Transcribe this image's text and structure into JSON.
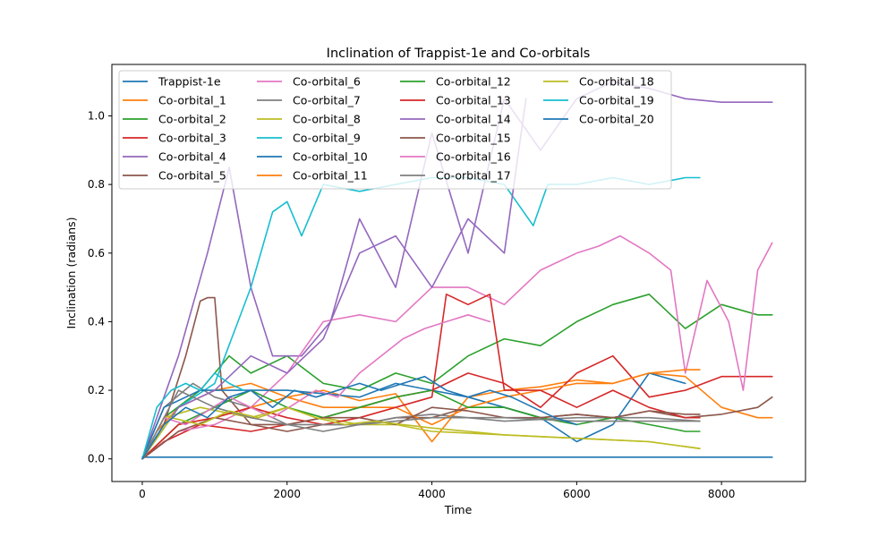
{
  "chart_data": {
    "type": "line",
    "title": "Inclination of Trappist-1e and Co-orbitals",
    "xlabel": "Time",
    "ylabel": "Inclination (radians)",
    "xlim": [
      -420,
      9160
    ],
    "ylim": [
      -0.066,
      1.15
    ],
    "xticks": [
      0,
      2000,
      4000,
      6000,
      8000
    ],
    "xtick_labels": [
      "0",
      "2000",
      "4000",
      "6000",
      "8000"
    ],
    "yticks": [
      0.0,
      0.2,
      0.4,
      0.6,
      0.8,
      1.0
    ],
    "ytick_labels": [
      "0.0",
      "0.2",
      "0.4",
      "0.6",
      "0.8",
      "1.0"
    ],
    "grid": false,
    "legend_position": "top-left",
    "legend_columns": 4,
    "series": [
      {
        "name": "Trappist-1e",
        "color": "#1f77b4",
        "x": [
          0,
          1000,
          2000,
          3000,
          4000,
          5000,
          6000,
          7000,
          8000,
          8700
        ],
        "y": [
          0.005,
          0.005,
          0.005,
          0.005,
          0.005,
          0.005,
          0.005,
          0.005,
          0.005,
          0.005
        ]
      },
      {
        "name": "Co-orbital_1",
        "color": "#ff7f0e",
        "x": [
          0,
          200,
          500,
          1000,
          1500,
          2000,
          2500,
          3000,
          3500,
          4000,
          4500,
          5000,
          5500,
          6000,
          6500,
          7000,
          7500,
          8000,
          8500,
          8700
        ],
        "y": [
          0.0,
          0.08,
          0.15,
          0.2,
          0.22,
          0.18,
          0.2,
          0.17,
          0.19,
          0.05,
          0.18,
          0.2,
          0.21,
          0.23,
          0.22,
          0.25,
          0.24,
          0.15,
          0.12,
          0.12
        ]
      },
      {
        "name": "Co-orbital_2",
        "color": "#2ca02c",
        "x": [
          0,
          300,
          800,
          1200,
          1500,
          2000,
          2500,
          3000,
          3500,
          4000,
          4500,
          5000,
          5500,
          6000,
          6500,
          7000,
          7500,
          8000,
          8500,
          8700
        ],
        "y": [
          0.0,
          0.12,
          0.2,
          0.3,
          0.25,
          0.3,
          0.22,
          0.2,
          0.25,
          0.22,
          0.3,
          0.35,
          0.33,
          0.4,
          0.45,
          0.48,
          0.38,
          0.45,
          0.42,
          0.42
        ]
      },
      {
        "name": "Co-orbital_3",
        "color": "#d62728",
        "x": [
          0,
          300,
          800,
          1500,
          2000,
          2500,
          3000,
          3500,
          4000,
          4500,
          5000,
          5500,
          6000,
          6500,
          7000,
          7500,
          8000,
          8500,
          8700
        ],
        "y": [
          0.0,
          0.05,
          0.1,
          0.08,
          0.1,
          0.12,
          0.15,
          0.18,
          0.2,
          0.25,
          0.22,
          0.15,
          0.25,
          0.3,
          0.18,
          0.2,
          0.24,
          0.24,
          0.24
        ]
      },
      {
        "name": "Co-orbital_4",
        "color": "#9467bd",
        "x": [
          0,
          500,
          900,
          1200,
          1500,
          1800,
          2200,
          2600,
          3000,
          3500,
          4000,
          4500,
          5000,
          5500,
          6000,
          6500,
          7000,
          7500,
          8000,
          8500,
          8700
        ],
        "y": [
          0.0,
          0.3,
          0.6,
          0.85,
          0.5,
          0.3,
          0.3,
          0.4,
          0.7,
          0.5,
          0.95,
          0.6,
          1.05,
          0.9,
          1.05,
          1.1,
          1.08,
          1.05,
          1.04,
          1.04,
          1.04
        ]
      },
      {
        "name": "Co-orbital_5",
        "color": "#8c564b",
        "x": [
          0,
          300,
          600,
          800,
          900,
          1000,
          1100,
          1500,
          2000,
          2500,
          3000,
          3500,
          4000,
          4500,
          5000,
          5500,
          6000,
          6500,
          7000,
          7500,
          8000,
          8500,
          8700
        ],
        "y": [
          0.0,
          0.1,
          0.3,
          0.46,
          0.47,
          0.47,
          0.2,
          0.1,
          0.08,
          0.1,
          0.1,
          0.12,
          0.12,
          0.15,
          0.15,
          0.12,
          0.13,
          0.12,
          0.14,
          0.12,
          0.13,
          0.15,
          0.18
        ]
      },
      {
        "name": "Co-orbital_6",
        "color": "#e377c2",
        "x": [
          0,
          500,
          1000,
          1500,
          2000,
          2500,
          3000,
          3500,
          4000,
          4500,
          5000,
          5500,
          6000,
          6300,
          6600,
          7000,
          7300,
          7500,
          7800,
          8100,
          8300,
          8500,
          8700
        ],
        "y": [
          0.0,
          0.08,
          0.1,
          0.15,
          0.25,
          0.4,
          0.42,
          0.4,
          0.5,
          0.5,
          0.45,
          0.55,
          0.6,
          0.62,
          0.65,
          0.6,
          0.55,
          0.25,
          0.52,
          0.4,
          0.2,
          0.55,
          0.63
        ]
      },
      {
        "name": "Co-orbital_7",
        "color": "#7f7f7f",
        "x": [
          0,
          300,
          700,
          1000,
          1500,
          2000,
          2500,
          3000,
          3500,
          4000,
          5000,
          6000,
          7000,
          7700
        ],
        "y": [
          0.0,
          0.15,
          0.22,
          0.18,
          0.15,
          0.1,
          0.08,
          0.1,
          0.12,
          0.13,
          0.11,
          0.12,
          0.12,
          0.11
        ]
      },
      {
        "name": "Co-orbital_8",
        "color": "#bcbd22",
        "x": [
          0,
          300,
          800,
          1500,
          2000,
          2500,
          3000,
          3500,
          4000,
          5000,
          6000,
          7000,
          7700
        ],
        "y": [
          0.0,
          0.12,
          0.15,
          0.12,
          0.15,
          0.12,
          0.1,
          0.1,
          0.08,
          0.07,
          0.06,
          0.05,
          0.03
        ]
      },
      {
        "name": "Co-orbital_9",
        "color": "#17becf",
        "x": [
          0,
          500,
          1000,
          1500,
          1800,
          2000,
          2200,
          2500,
          3000,
          3500,
          4000,
          4500,
          5000,
          5400,
          5600,
          6000,
          6500,
          7000,
          7500,
          7700
        ],
        "y": [
          0.0,
          0.15,
          0.22,
          0.5,
          0.72,
          0.75,
          0.65,
          0.8,
          0.78,
          0.8,
          0.82,
          0.82,
          0.8,
          0.68,
          0.8,
          0.8,
          0.82,
          0.8,
          0.82,
          0.82
        ]
      },
      {
        "name": "Co-orbital_10",
        "color": "#1f77b4",
        "x": [
          0,
          300,
          800,
          1500,
          2000,
          3000,
          3500,
          4000,
          4500,
          5000,
          5500,
          6000,
          6500,
          7000,
          7500
        ],
        "y": [
          0.0,
          0.15,
          0.2,
          0.2,
          0.2,
          0.18,
          0.22,
          0.2,
          0.18,
          0.15,
          0.12,
          0.05,
          0.1,
          0.25,
          0.22
        ]
      },
      {
        "name": "Co-orbital_11",
        "color": "#ff7f0e",
        "x": [
          0,
          500,
          1000,
          1500,
          2000,
          2500,
          3000,
          3500,
          4000,
          4500,
          5000,
          5500,
          6000,
          6500,
          7000,
          7500,
          7700
        ],
        "y": [
          0.0,
          0.1,
          0.12,
          0.15,
          0.18,
          0.15,
          0.15,
          0.15,
          0.1,
          0.15,
          0.18,
          0.2,
          0.22,
          0.22,
          0.25,
          0.26,
          0.26
        ]
      },
      {
        "name": "Co-orbital_12",
        "color": "#2ca02c",
        "x": [
          0,
          500,
          1000,
          1500,
          2000,
          2500,
          3000,
          3500,
          4000,
          4500,
          5000,
          5500,
          6000,
          6500,
          7000,
          7500,
          7700
        ],
        "y": [
          0.0,
          0.1,
          0.15,
          0.2,
          0.15,
          0.12,
          0.15,
          0.18,
          0.2,
          0.15,
          0.15,
          0.12,
          0.1,
          0.12,
          0.1,
          0.08,
          0.08
        ]
      },
      {
        "name": "Co-orbital_13",
        "color": "#d62728",
        "x": [
          0,
          500,
          1000,
          1500,
          2000,
          2500,
          3000,
          3500,
          4000,
          4200,
          4500,
          4800,
          5000,
          5500,
          6000,
          6500,
          7000,
          7500,
          7700
        ],
        "y": [
          0.0,
          0.1,
          0.12,
          0.15,
          0.12,
          0.1,
          0.12,
          0.15,
          0.18,
          0.48,
          0.45,
          0.48,
          0.2,
          0.2,
          0.15,
          0.2,
          0.15,
          0.12,
          0.12
        ]
      },
      {
        "name": "Co-orbital_14",
        "color": "#9467bd",
        "x": [
          0,
          500,
          1000,
          1500,
          2000,
          2500,
          3000,
          3500,
          4000,
          4500,
          5000,
          5300
        ],
        "y": [
          0.0,
          0.15,
          0.2,
          0.3,
          0.25,
          0.35,
          0.6,
          0.65,
          0.5,
          0.7,
          0.6,
          1.05
        ]
      },
      {
        "name": "Co-orbital_15",
        "color": "#8c564b",
        "x": [
          0,
          500,
          1000,
          1500,
          2000,
          2500,
          3000,
          3500,
          4000,
          4500,
          5000,
          5500,
          6000,
          6500,
          7000,
          7500,
          7700
        ],
        "y": [
          0.0,
          0.08,
          0.12,
          0.1,
          0.1,
          0.12,
          0.12,
          0.1,
          0.15,
          0.14,
          0.12,
          0.12,
          0.13,
          0.12,
          0.14,
          0.13,
          0.13
        ]
      },
      {
        "name": "Co-orbital_16",
        "color": "#e377c2",
        "x": [
          0,
          300,
          600,
          900,
          1200,
          1500,
          1800,
          2100,
          2400,
          2700,
          3000,
          3300,
          3600,
          3900,
          4200,
          4500,
          4800
        ],
        "y": [
          0.0,
          0.12,
          0.1,
          0.14,
          0.18,
          0.15,
          0.12,
          0.16,
          0.2,
          0.18,
          0.25,
          0.3,
          0.35,
          0.38,
          0.4,
          0.42,
          0.4
        ]
      },
      {
        "name": "Co-orbital_17",
        "color": "#7f7f7f",
        "x": [
          0,
          500,
          1000,
          1500,
          2000,
          2500,
          3000,
          3500,
          4000,
          5000,
          6000,
          7000,
          7700
        ],
        "y": [
          0.0,
          0.2,
          0.15,
          0.12,
          0.1,
          0.1,
          0.1,
          0.11,
          0.12,
          0.12,
          0.11,
          0.11,
          0.11
        ]
      },
      {
        "name": "Co-orbital_18",
        "color": "#bcbd22",
        "x": [
          0,
          400,
          800,
          1200,
          1600,
          2000,
          2400,
          2800,
          3200,
          3600,
          4000,
          4500,
          5000,
          6000,
          7000,
          7700
        ],
        "y": [
          0.0,
          0.12,
          0.1,
          0.14,
          0.12,
          0.15,
          0.12,
          0.1,
          0.11,
          0.1,
          0.09,
          0.08,
          0.07,
          0.06,
          0.05,
          0.03
        ]
      },
      {
        "name": "Co-orbital_19",
        "color": "#17becf",
        "x": [
          0,
          200,
          400,
          600,
          800,
          1000,
          1200,
          1400
        ],
        "y": [
          0.0,
          0.15,
          0.2,
          0.22,
          0.2,
          0.25,
          0.22,
          0.2
        ]
      },
      {
        "name": "Co-orbital_20",
        "color": "#1f77b4",
        "x": [
          0,
          300,
          600,
          900,
          1200,
          1500,
          1800,
          2100,
          2400,
          2700,
          3000,
          3300,
          3600,
          3900,
          4200,
          4500,
          4800,
          5100,
          5400,
          5700,
          6000
        ],
        "y": [
          0.0,
          0.1,
          0.15,
          0.12,
          0.18,
          0.2,
          0.15,
          0.2,
          0.18,
          0.2,
          0.22,
          0.2,
          0.22,
          0.24,
          0.2,
          0.18,
          0.2,
          0.18,
          0.15,
          0.12,
          0.1
        ]
      }
    ]
  }
}
